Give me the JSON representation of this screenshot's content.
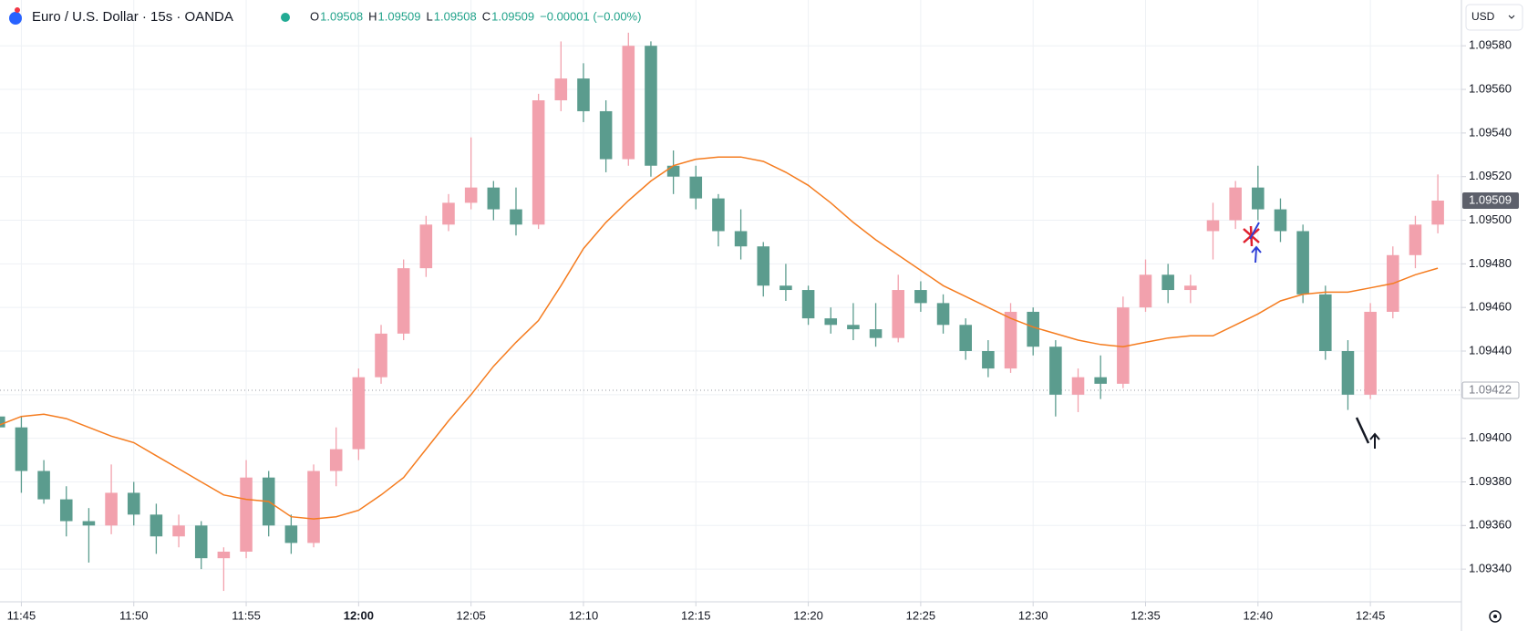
{
  "chart_data": {
    "type": "candlestick",
    "title": "Euro / U.S. Dollar · 15s · OANDA",
    "ohlc_legend": [
      {
        "label": "O",
        "value": "1.09508"
      },
      {
        "label": "H",
        "value": "1.09509"
      },
      {
        "label": "L",
        "value": "1.09508"
      },
      {
        "label": "C",
        "value": "1.09509"
      }
    ],
    "change": "−0.00001 (−0.00%)",
    "currency": "USD",
    "up_color": "#f2a1ad",
    "down_color": "#5b9c8e",
    "x": [
      "11:44",
      "11:45",
      "11:46",
      "11:47",
      "11:48",
      "11:49",
      "11:50",
      "11:51",
      "11:52",
      "11:53",
      "11:54",
      "11:55",
      "11:56",
      "11:57",
      "11:58",
      "11:59",
      "12:00",
      "12:01",
      "12:02",
      "12:03",
      "12:04",
      "12:05",
      "12:06",
      "12:07",
      "12:08",
      "12:09",
      "12:10",
      "12:11",
      "12:12",
      "12:13",
      "12:14",
      "12:15",
      "12:16",
      "12:17",
      "12:18",
      "12:19",
      "12:20",
      "12:21",
      "12:22",
      "12:23",
      "12:24",
      "12:25",
      "12:26",
      "12:27",
      "12:28",
      "12:29",
      "12:30",
      "12:31",
      "12:32",
      "12:33",
      "12:34",
      "12:35",
      "12:36",
      "12:37",
      "12:38",
      "12:39",
      "12:40",
      "12:41",
      "12:42",
      "12:43",
      "12:44",
      "12:45",
      "12:46",
      "12:47",
      "12:48"
    ],
    "open": [
      1.0941,
      1.09405,
      1.09385,
      1.09372,
      1.09362,
      1.0936,
      1.09375,
      1.09365,
      1.09355,
      1.0936,
      1.09345,
      1.09348,
      1.09382,
      1.0936,
      1.09352,
      1.09385,
      1.09395,
      1.09428,
      1.09448,
      1.09478,
      1.09498,
      1.09508,
      1.09515,
      1.09505,
      1.09498,
      1.09555,
      1.09565,
      1.0955,
      1.09528,
      1.0958,
      1.09525,
      1.0952,
      1.0951,
      1.09495,
      1.09488,
      1.0947,
      1.09468,
      1.09455,
      1.09452,
      1.0945,
      1.09446,
      1.09468,
      1.09462,
      1.09452,
      1.0944,
      1.09432,
      1.09458,
      1.09442,
      1.0942,
      1.09428,
      1.09425,
      1.0946,
      1.09475,
      1.09468,
      1.09495,
      1.095,
      1.09515,
      1.09505,
      1.09495,
      1.09466,
      1.0944,
      1.0942,
      1.09458,
      1.09484,
      1.09498
    ],
    "high": [
      1.09438,
      1.0941,
      1.0939,
      1.09378,
      1.09368,
      1.09388,
      1.0938,
      1.0937,
      1.09365,
      1.09362,
      1.0935,
      1.0939,
      1.09385,
      1.09365,
      1.09388,
      1.09405,
      1.09432,
      1.09452,
      1.09482,
      1.09502,
      1.09512,
      1.09538,
      1.09518,
      1.09515,
      1.09558,
      1.09582,
      1.09572,
      1.09555,
      1.09586,
      1.09582,
      1.09532,
      1.09525,
      1.09512,
      1.09505,
      1.0949,
      1.0948,
      1.0947,
      1.0946,
      1.09462,
      1.09462,
      1.09475,
      1.09472,
      1.09466,
      1.09455,
      1.09445,
      1.09462,
      1.0946,
      1.09445,
      1.09432,
      1.09438,
      1.09465,
      1.09482,
      1.0948,
      1.09475,
      1.09508,
      1.09518,
      1.09525,
      1.0951,
      1.09498,
      1.0947,
      1.09445,
      1.09462,
      1.09488,
      1.09502,
      1.09521
    ],
    "low": [
      1.09402,
      1.09375,
      1.0937,
      1.09355,
      1.09343,
      1.09356,
      1.0936,
      1.09347,
      1.0935,
      1.0934,
      1.0933,
      1.09345,
      1.09355,
      1.09347,
      1.0935,
      1.09378,
      1.0939,
      1.09425,
      1.09445,
      1.09474,
      1.09495,
      1.09505,
      1.095,
      1.09493,
      1.09496,
      1.0955,
      1.09545,
      1.09522,
      1.09525,
      1.0952,
      1.09512,
      1.09505,
      1.09488,
      1.09482,
      1.09465,
      1.09463,
      1.09452,
      1.09448,
      1.09445,
      1.09442,
      1.09444,
      1.09458,
      1.09448,
      1.09436,
      1.09428,
      1.0943,
      1.09438,
      1.0941,
      1.09412,
      1.09418,
      1.09423,
      1.09458,
      1.09462,
      1.09462,
      1.09482,
      1.09496,
      1.095,
      1.0949,
      1.09462,
      1.09436,
      1.09413,
      1.09418,
      1.09455,
      1.09478,
      1.09494
    ],
    "close": [
      1.09405,
      1.09385,
      1.09372,
      1.09362,
      1.0936,
      1.09375,
      1.09365,
      1.09355,
      1.0936,
      1.09345,
      1.09348,
      1.09382,
      1.0936,
      1.09352,
      1.09385,
      1.09395,
      1.09428,
      1.09448,
      1.09478,
      1.09498,
      1.09508,
      1.09515,
      1.09505,
      1.09498,
      1.09555,
      1.09565,
      1.0955,
      1.09528,
      1.0958,
      1.09525,
      1.0952,
      1.0951,
      1.09495,
      1.09488,
      1.0947,
      1.09468,
      1.09455,
      1.09452,
      1.0945,
      1.09446,
      1.09468,
      1.09462,
      1.09452,
      1.0944,
      1.09432,
      1.09458,
      1.09442,
      1.0942,
      1.09428,
      1.09425,
      1.0946,
      1.09475,
      1.09468,
      1.0947,
      1.095,
      1.09515,
      1.09505,
      1.09495,
      1.09466,
      1.0944,
      1.0942,
      1.09458,
      1.09484,
      1.09498,
      1.09509
    ],
    "ma": {
      "color": "#f57c1f",
      "values": [
        1.09406,
        1.0941,
        1.09411,
        1.09409,
        1.09405,
        1.09401,
        1.09398,
        1.09392,
        1.09386,
        1.0938,
        1.09374,
        1.09372,
        1.09371,
        1.09364,
        1.09363,
        1.09364,
        1.09367,
        1.09374,
        1.09382,
        1.09395,
        1.09408,
        1.0942,
        1.09433,
        1.09444,
        1.09454,
        1.0947,
        1.09487,
        1.09499,
        1.09509,
        1.09518,
        1.09525,
        1.09528,
        1.09529,
        1.09529,
        1.09527,
        1.09522,
        1.09516,
        1.09508,
        1.09499,
        1.09491,
        1.09484,
        1.09477,
        1.0947,
        1.09465,
        1.0946,
        1.09455,
        1.09451,
        1.09448,
        1.09445,
        1.09443,
        1.09442,
        1.09444,
        1.09446,
        1.09447,
        1.09447,
        1.09452,
        1.09457,
        1.09463,
        1.09466,
        1.09467,
        1.09467,
        1.09469,
        1.09471,
        1.09475,
        1.09478
      ]
    },
    "xlim": [
      "11:44:03",
      "12:49:03"
    ],
    "xticks": [
      "11:45",
      "11:50",
      "11:55",
      "12:00",
      "12:05",
      "12:10",
      "12:15",
      "12:20",
      "12:25",
      "12:30",
      "12:35",
      "12:40",
      "12:45"
    ],
    "ylim": [
      1.09325,
      1.09601
    ],
    "yticks": [
      {
        "value": 1.0934,
        "label": "1.09340"
      },
      {
        "value": 1.0936,
        "label": "1.09360"
      },
      {
        "value": 1.0938,
        "label": "1.09380"
      },
      {
        "value": 1.094,
        "label": "1.09400"
      },
      {
        "value": 1.0942,
        "label": "1.09420"
      },
      {
        "value": 1.0944,
        "label": "1.09440"
      },
      {
        "value": 1.0946,
        "label": "1.09460"
      },
      {
        "value": 1.0948,
        "label": "1.09480"
      },
      {
        "value": 1.095,
        "label": "1.09500"
      },
      {
        "value": 1.0952,
        "label": "1.09520"
      },
      {
        "value": 1.0954,
        "label": "1.09540"
      },
      {
        "value": 1.0956,
        "label": "1.09560"
      },
      {
        "value": 1.0958,
        "label": "1.09580"
      }
    ],
    "last_price": {
      "value": 1.09509,
      "label": "1.09509"
    },
    "marker_price": {
      "value": 1.09422,
      "label": "1.09422"
    },
    "grid": true
  }
}
